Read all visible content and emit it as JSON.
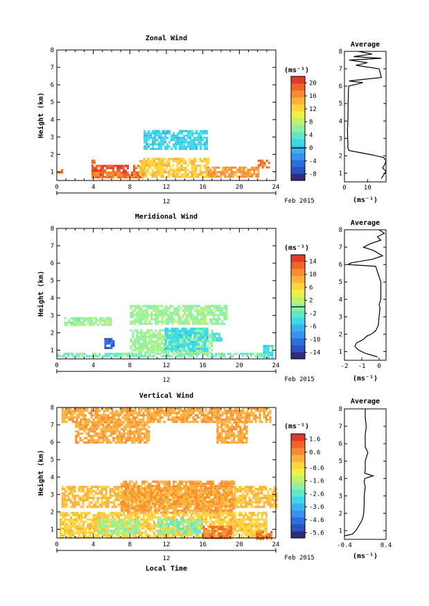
{
  "figure": {
    "date_label": "Feb 2015",
    "day_label": "12",
    "x_axis_label": "Local Time",
    "y_axis_label": "Height (km)",
    "unit_label": "(ms⁻¹)",
    "avg_title": "Average",
    "avg_xlabel": "(ms⁻¹)"
  },
  "colormap": [
    "#302a7a",
    "#2e4fbf",
    "#2a6fe0",
    "#3a92f0",
    "#3ab4f0",
    "#3ad8e8",
    "#5ee8c8",
    "#8ef0a0",
    "#c0f070",
    "#eef048",
    "#fcd53a",
    "#fbb13a",
    "#f88c30",
    "#f06428",
    "#e23a2a"
  ],
  "chart_data": [
    {
      "type": "heatmap",
      "title": "Zonal Wind",
      "xlabel": "Local Time",
      "ylabel": "Height (km)",
      "xlim": [
        0,
        24
      ],
      "ylim": [
        0.5,
        8
      ],
      "xticks": [
        0,
        4,
        8,
        12,
        16,
        20,
        24
      ],
      "yticks": [
        1,
        2,
        3,
        4,
        5,
        6,
        7,
        8
      ],
      "colorbar": {
        "unit": "(ms⁻¹)",
        "range": [
          -10,
          22
        ],
        "ticks": [
          -8,
          -4,
          0,
          4,
          8,
          12,
          16,
          20
        ],
        "zero_line": 0
      },
      "regions": [
        {
          "x": [
            0,
            0.6
          ],
          "y": [
            0.9,
            1.15
          ],
          "value": 18
        },
        {
          "x": [
            3.8,
            9.6
          ],
          "y": [
            0.7,
            1.4
          ],
          "value": 20
        },
        {
          "x": [
            3.8,
            9.6
          ],
          "y": [
            0.7,
            1.0
          ],
          "value": 17
        },
        {
          "x": [
            9,
            16.6
          ],
          "y": [
            0.7,
            1.8
          ],
          "value": 13
        },
        {
          "x": [
            16.5,
            22
          ],
          "y": [
            0.7,
            1.3
          ],
          "value": 16
        },
        {
          "x": [
            22,
            23.2
          ],
          "y": [
            1.2,
            1.7
          ],
          "value": 18
        },
        {
          "x": [
            9.5,
            16.5
          ],
          "y": [
            2.3,
            3.4
          ],
          "value": 1.5
        },
        {
          "x": [
            3.8,
            4.2
          ],
          "y": [
            1.5,
            1.7
          ],
          "value": 17
        }
      ],
      "average_profile": {
        "xlim": [
          0,
          18
        ],
        "xticks": [
          0,
          10
        ],
        "height": [
          0.7,
          0.9,
          1.1,
          1.3,
          1.5,
          1.7,
          1.9,
          2.05,
          2.2,
          2.3,
          2.45,
          2.7,
          3.0,
          3.5,
          4.0,
          5.0,
          6.0,
          6.2,
          6.3,
          6.5,
          7.0,
          7.2,
          7.35,
          7.5,
          7.6,
          7.7,
          7.85,
          8.0
        ],
        "value": [
          16,
          17,
          18,
          16.5,
          17.5,
          18,
          17,
          12,
          6,
          2,
          1.5,
          1.5,
          1.4,
          1.3,
          1.5,
          1.6,
          1.8,
          8,
          2,
          16,
          15,
          5,
          10,
          2,
          16,
          4,
          12,
          6
        ]
      }
    },
    {
      "type": "heatmap",
      "title": "Meridional Wind",
      "xlabel": "Local Time",
      "ylabel": "Height (km)",
      "xlim": [
        0,
        24
      ],
      "ylim": [
        0.5,
        8
      ],
      "xticks": [
        0,
        4,
        8,
        12,
        16,
        20,
        24
      ],
      "yticks": [
        1,
        2,
        3,
        4,
        5,
        6,
        7,
        8
      ],
      "colorbar": {
        "unit": "(ms⁻¹)",
        "range": [
          -16,
          16
        ],
        "ticks": [
          -14,
          -10,
          -6,
          -2,
          2,
          6,
          10,
          14
        ],
        "zero_line": 0
      },
      "regions": [
        {
          "x": [
            0,
            23
          ],
          "y": [
            0.6,
            0.85
          ],
          "value": -1
        },
        {
          "x": [
            5.2,
            6.2
          ],
          "y": [
            1.1,
            1.7
          ],
          "value": -11
        },
        {
          "x": [
            8,
            17
          ],
          "y": [
            0.85,
            2.2
          ],
          "value": 0.5
        },
        {
          "x": [
            11.8,
            16.5
          ],
          "y": [
            0.9,
            2.3
          ],
          "value": -4
        },
        {
          "x": [
            22.6,
            23.6
          ],
          "y": [
            0.6,
            1.3
          ],
          "value": -4
        },
        {
          "x": [
            8,
            18.5
          ],
          "y": [
            2.5,
            3.6
          ],
          "value": 0.5
        },
        {
          "x": [
            0.8,
            2.4
          ],
          "y": [
            2.5,
            2.9
          ],
          "value": 0.2
        },
        {
          "x": [
            2.6,
            5.8
          ],
          "y": [
            2.5,
            2.9
          ],
          "value": 0.5
        },
        {
          "x": [
            17,
            18
          ],
          "y": [
            1.5,
            2.0
          ],
          "value": -3
        }
      ],
      "average_profile": {
        "xlim": [
          -2,
          0.4
        ],
        "xticks": [
          -2,
          -1,
          0
        ],
        "height": [
          0.7,
          0.9,
          1.1,
          1.3,
          1.5,
          1.7,
          1.9,
          2.0,
          2.2,
          2.5,
          3.0,
          3.5,
          3.7,
          4.0,
          5.0,
          5.9,
          6.0,
          6.1,
          6.3,
          6.5,
          6.8,
          7.0,
          7.2,
          7.4,
          7.6,
          7.8,
          8.0
        ],
        "value": [
          -0.1,
          -0.8,
          -1.2,
          -1.4,
          -1.3,
          -0.9,
          -0.7,
          -0.45,
          -0.2,
          -0.05,
          0.0,
          0.05,
          0.0,
          0.1,
          0.1,
          -0.2,
          -1.8,
          -1.6,
          -0.4,
          0.2,
          -0.3,
          -0.9,
          -0.5,
          0.1,
          -0.1,
          0.3,
          0.0
        ]
      }
    },
    {
      "type": "heatmap",
      "title": "Vertical Wind",
      "xlabel": "Local Time",
      "ylabel": "Height (km)",
      "xlim": [
        0,
        24
      ],
      "ylim": [
        0.5,
        8
      ],
      "xticks": [
        0,
        4,
        8,
        12,
        16,
        20,
        24
      ],
      "yticks": [
        1,
        2,
        3,
        4,
        5,
        6,
        7,
        8
      ],
      "colorbar": {
        "unit": "(ms⁻¹)",
        "range": [
          -6.0,
          2.0
        ],
        "ticks": [
          -5.6,
          -4.6,
          -3.6,
          -2.6,
          -1.6,
          -0.6,
          0.6,
          1.6
        ]
      },
      "regions": [
        {
          "x": [
            0.5,
            23.5
          ],
          "y": [
            7.2,
            8.0
          ],
          "value": 0.3
        },
        {
          "x": [
            2,
            10
          ],
          "y": [
            6.0,
            7.2
          ],
          "value": 0.3
        },
        {
          "x": [
            17.5,
            20.8
          ],
          "y": [
            6.0,
            7.2
          ],
          "value": 0.3
        },
        {
          "x": [
            0.5,
            24
          ],
          "y": [
            2.3,
            3.5
          ],
          "value": 0.0
        },
        {
          "x": [
            7,
            19.5
          ],
          "y": [
            2.0,
            3.8
          ],
          "value": 0.4
        },
        {
          "x": [
            0.3,
            23
          ],
          "y": [
            0.5,
            2.0
          ],
          "value": -0.3
        },
        {
          "x": [
            4.5,
            9
          ],
          "y": [
            0.8,
            1.6
          ],
          "value": -1.8
        },
        {
          "x": [
            11,
            16
          ],
          "y": [
            0.8,
            1.6
          ],
          "value": -2.2
        },
        {
          "x": [
            16,
            19
          ],
          "y": [
            0.5,
            1.2
          ],
          "value": 1.0
        },
        {
          "x": [
            21.8,
            23.5
          ],
          "y": [
            0.5,
            0.9
          ],
          "value": 0.9
        }
      ],
      "average_profile": {
        "xlim": [
          -0.4,
          0.4
        ],
        "xticks": [
          -0.4,
          0.4
        ],
        "height": [
          0.7,
          0.8,
          1.0,
          1.3,
          1.5,
          1.7,
          2.0,
          2.5,
          3.0,
          3.5,
          3.8,
          4.0,
          4.15,
          4.3,
          4.5,
          5.0,
          5.5,
          5.8,
          6.0,
          6.5,
          7.0,
          7.5,
          8.0
        ],
        "value": [
          -0.4,
          -0.25,
          -0.18,
          -0.12,
          -0.08,
          -0.05,
          -0.03,
          -0.02,
          -0.02,
          0.0,
          -0.02,
          -0.01,
          0.15,
          -0.01,
          0.0,
          0.0,
          0.05,
          0.0,
          0.0,
          0.0,
          0.02,
          0.0,
          0.0
        ]
      }
    }
  ]
}
